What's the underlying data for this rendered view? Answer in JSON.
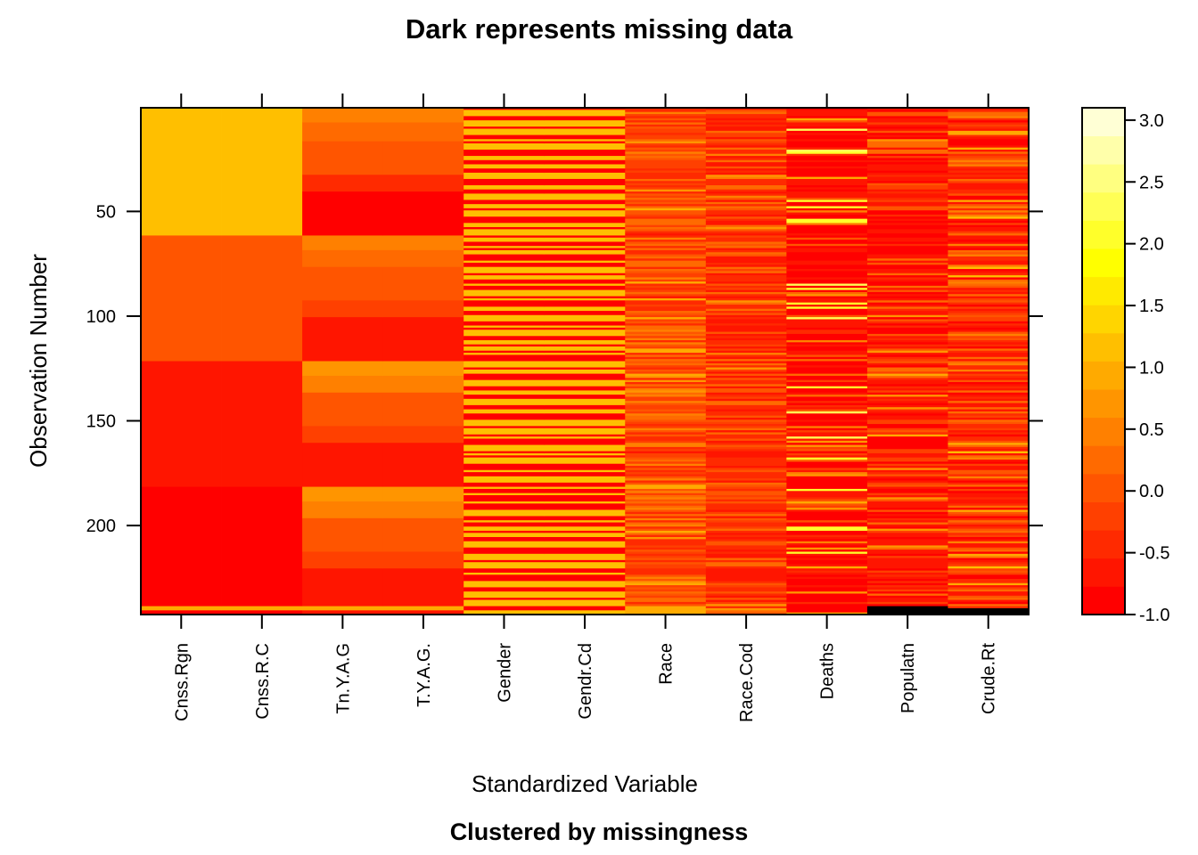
{
  "chart_data": {
    "type": "heatmap",
    "title": "Dark represents missing data",
    "subtitle": "Clustered by missingness",
    "xlabel": "Standardized Variable",
    "ylabel": "Observation Number",
    "x_categories": [
      "Cnss.Rgn",
      "Cnss.R.C",
      "Tn.Y.A.G",
      "T.Y.A.G.",
      "Gender",
      "Gendr.Cd",
      "Race",
      "Race.Cod",
      "Deaths",
      "Populatn",
      "Crude.Rt"
    ],
    "n_observations": 242,
    "y_ticks": [
      50,
      100,
      150,
      200
    ],
    "colorbar": {
      "range": [
        -1.0,
        3.1
      ],
      "ticks": [
        3.0,
        2.5,
        2.0,
        1.5,
        1.0,
        0.5,
        0.0,
        -0.5,
        -1.0
      ],
      "tick_labels": [
        "3.0",
        "2.5",
        "2.0",
        "1.5",
        "1.0",
        "0.5",
        "0.0",
        "-0.5",
        "-1.0"
      ],
      "colors": [
        "#ff0000",
        "#ff1500",
        "#ff2a00",
        "#ff4000",
        "#ff5500",
        "#ff6a00",
        "#ff8000",
        "#ff9500",
        "#ffaa00",
        "#ffbf00",
        "#ffd500",
        "#ffea00",
        "#ffff00",
        "#ffff2a",
        "#ffff55",
        "#ffff80",
        "#ffffaa",
        "#ffffd5"
      ]
    },
    "missing_color": "#000000",
    "groups": {
      "Cnss.Rgn": [
        {
          "from": 1,
          "to": 61,
          "value": 1.1
        },
        {
          "from": 62,
          "to": 121,
          "value": 0.1
        },
        {
          "from": 122,
          "to": 181,
          "value": -0.6
        },
        {
          "from": 182,
          "to": 238,
          "value": -0.8
        },
        {
          "from": 239,
          "to": 240,
          "value": 1.0
        },
        {
          "from": 241,
          "to": 242,
          "value": -0.8
        }
      ],
      "Tn.Y.A.G": [
        {
          "from": 1,
          "to": 7,
          "value": 0.5
        },
        {
          "from": 8,
          "to": 16,
          "value": 0.2
        },
        {
          "from": 17,
          "to": 32,
          "value": 0.0
        },
        {
          "from": 33,
          "to": 40,
          "value": -0.4
        },
        {
          "from": 41,
          "to": 61,
          "value": -0.8
        },
        {
          "from": 62,
          "to": 68,
          "value": 0.5
        },
        {
          "from": 69,
          "to": 76,
          "value": 0.3
        },
        {
          "from": 77,
          "to": 92,
          "value": 0.1
        },
        {
          "from": 93,
          "to": 100,
          "value": -0.2
        },
        {
          "from": 101,
          "to": 121,
          "value": -0.7
        },
        {
          "from": 122,
          "to": 128,
          "value": 0.6
        },
        {
          "from": 129,
          "to": 136,
          "value": 0.4
        },
        {
          "from": 137,
          "to": 152,
          "value": 0.1
        },
        {
          "from": 153,
          "to": 160,
          "value": -0.3
        },
        {
          "from": 161,
          "to": 181,
          "value": -0.7
        },
        {
          "from": 182,
          "to": 188,
          "value": 0.6
        },
        {
          "from": 189,
          "to": 196,
          "value": 0.4
        },
        {
          "from": 197,
          "to": 212,
          "value": 0.1
        },
        {
          "from": 213,
          "to": 220,
          "value": -0.3
        },
        {
          "from": 221,
          "to": 238,
          "value": -0.7
        },
        {
          "from": 239,
          "to": 240,
          "value": 1.0
        },
        {
          "from": 241,
          "to": 242,
          "value": -0.7
        }
      ]
    },
    "alternating_rows": {
      "Gender": {
        "values": [
          1.1,
          -0.8
        ],
        "period": 2
      },
      "Race": {
        "base": -0.2,
        "high": 1.0
      },
      "Race.Cod": {
        "base": -0.4,
        "high": 0.8
      },
      "Deaths": {
        "base": -0.7,
        "high": 2.3
      },
      "Populatn": {
        "base": -0.6,
        "high": 1.0
      },
      "Crude.Rt": {
        "base": -0.5,
        "high": 1.2
      }
    },
    "missing_rows": {
      "Populatn": [
        239,
        240,
        241,
        242
      ],
      "Crude.Rt": [
        240,
        241,
        242
      ]
    }
  }
}
